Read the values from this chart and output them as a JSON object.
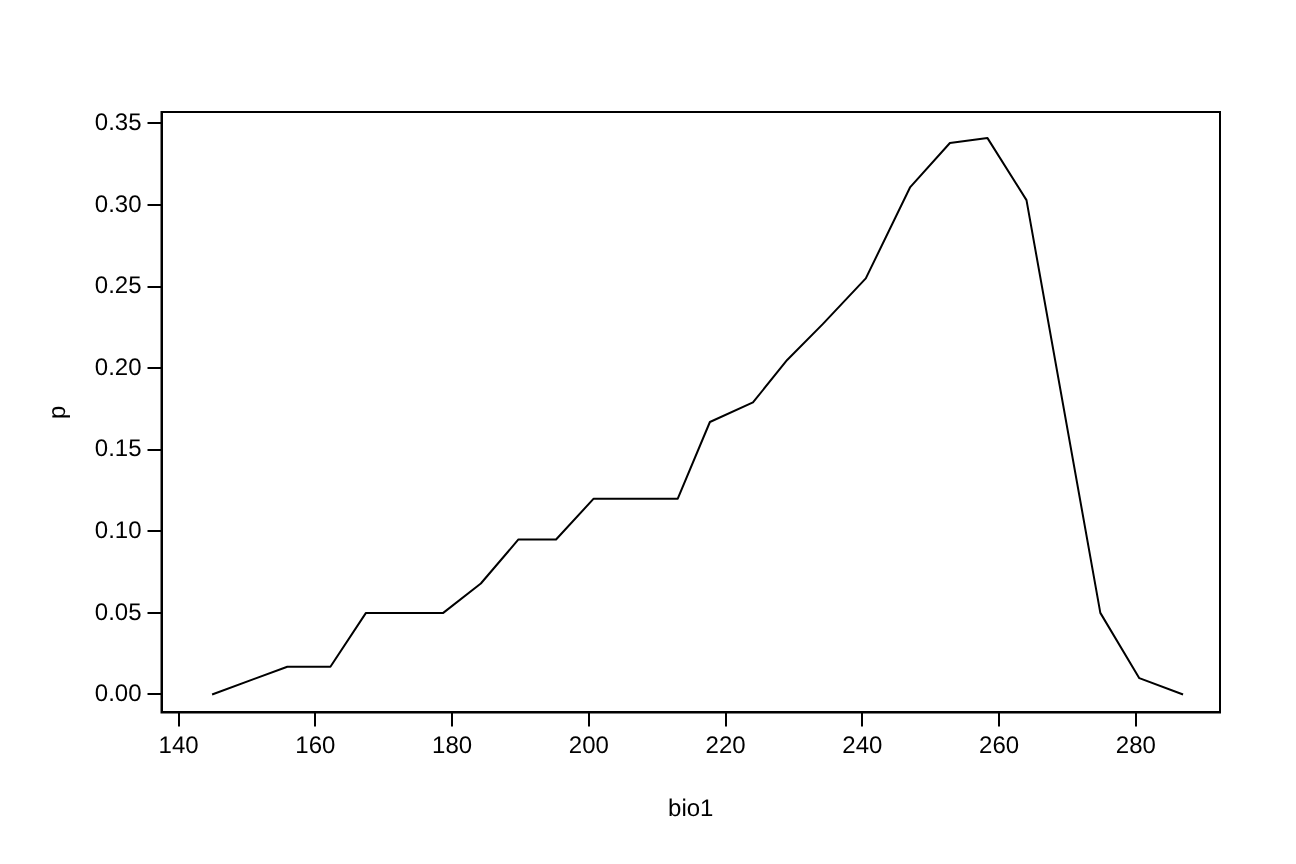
{
  "chart_data": {
    "type": "line",
    "xlabel": "bio1",
    "ylabel": "p",
    "x": [
      144.9,
      155.9,
      162.2,
      167.4,
      178.7,
      184.2,
      189.7,
      195.2,
      200.7,
      213,
      217.7,
      224,
      229,
      234.2,
      240.5,
      247,
      252.8,
      258.3,
      264,
      274.8,
      280.5,
      286.9
    ],
    "series": [
      {
        "color": "#000000",
        "values": [
          0,
          0.017,
          0.017,
          0.05,
          0.05,
          0.068,
          0.095,
          0.095,
          0.12,
          0.12,
          0.167,
          0.179,
          0.205,
          0.227,
          0.255,
          0.311,
          0.338,
          0.341,
          0.303,
          0.05,
          0.01,
          0
        ]
      }
    ],
    "xlim": [
      137.5,
      292.3
    ],
    "ylim": [
      -0.011,
      0.357
    ],
    "xticks": [
      140,
      160,
      180,
      200,
      220,
      240,
      260,
      280
    ],
    "yticks": [
      {
        "value": 0,
        "label": "0.00"
      },
      {
        "value": 0.05,
        "label": "0.05"
      },
      {
        "value": 0.1,
        "label": "0.10"
      },
      {
        "value": 0.15,
        "label": "0.15"
      },
      {
        "value": 0.2,
        "label": "0.20"
      },
      {
        "value": 0.25,
        "label": "0.25"
      },
      {
        "value": 0.3,
        "label": "0.30"
      },
      {
        "value": 0.35,
        "label": "0.35"
      }
    ],
    "grid": false,
    "legend": false,
    "marker": "none",
    "line_style": "solid"
  }
}
